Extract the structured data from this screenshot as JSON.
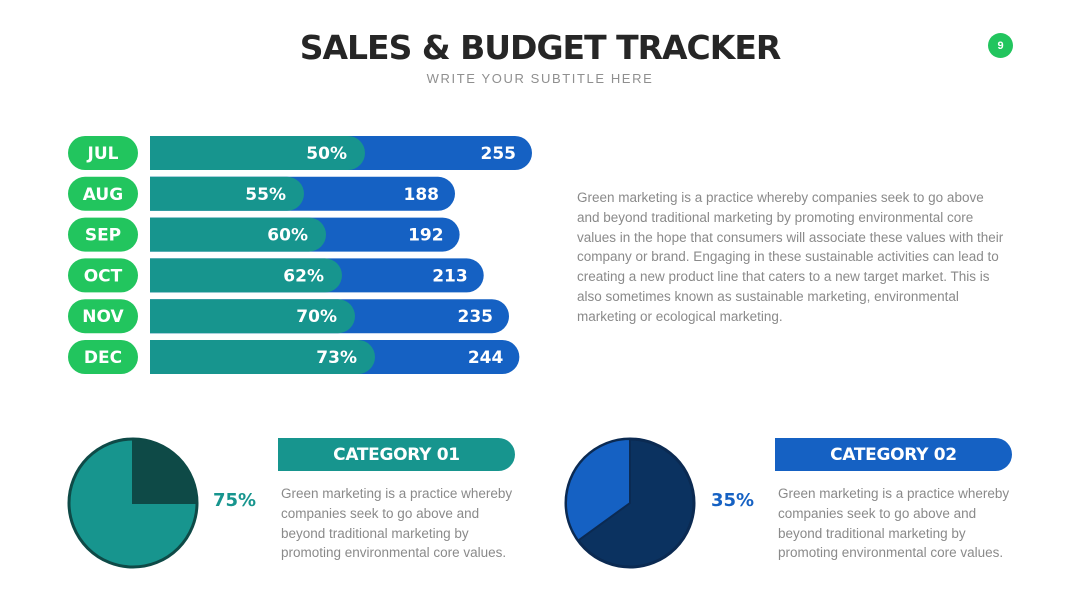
{
  "header": {
    "title": "SALES & BUDGET TRACKER",
    "subtitle": "WRITE YOUR SUBTITLE HERE",
    "page_number": "9"
  },
  "colors": {
    "green": "#22c55e",
    "teal": "#17958e",
    "blue": "#1561c3",
    "dark_teal": "#0e4a47",
    "navy": "#0b3260"
  },
  "chart_data": [
    {
      "type": "bar",
      "categories": [
        "JUL",
        "AUG",
        "SEP",
        "OCT",
        "NOV",
        "DEC"
      ],
      "series": [
        {
          "values": [
            50,
            55,
            60,
            62,
            70,
            73
          ],
          "labels": [
            "50%",
            "55%",
            "60%",
            "62%",
            "70%",
            "73%"
          ]
        },
        {
          "values": [
            255,
            188,
            192,
            213,
            235,
            244
          ],
          "labels": [
            "255",
            "188",
            "192",
            "213",
            "235",
            "244"
          ]
        }
      ]
    },
    {
      "type": "pie",
      "values": [
        75,
        25
      ],
      "label": "75%"
    },
    {
      "type": "pie",
      "values": [
        35,
        65
      ],
      "label": "35%"
    }
  ],
  "main_paragraph": "Green marketing is a practice whereby companies seek to go above and beyond traditional marketing by promoting environmental core values in the hope that consumers will associate these values with their company or brand. Engaging in these sustainable activities can lead to creating a new product line that caters to a new target market. This is also sometimes known as sustainable marketing, environmental marketing or ecological marketing.",
  "categories": [
    {
      "title": "CATEGORY 01",
      "text": "Green marketing is a practice whereby companies seek to go above and beyond traditional marketing by promoting environmental core values."
    },
    {
      "title": "CATEGORY 02",
      "text": "Green marketing is a practice whereby companies seek to go above and beyond traditional marketing by promoting environmental core values."
    }
  ]
}
